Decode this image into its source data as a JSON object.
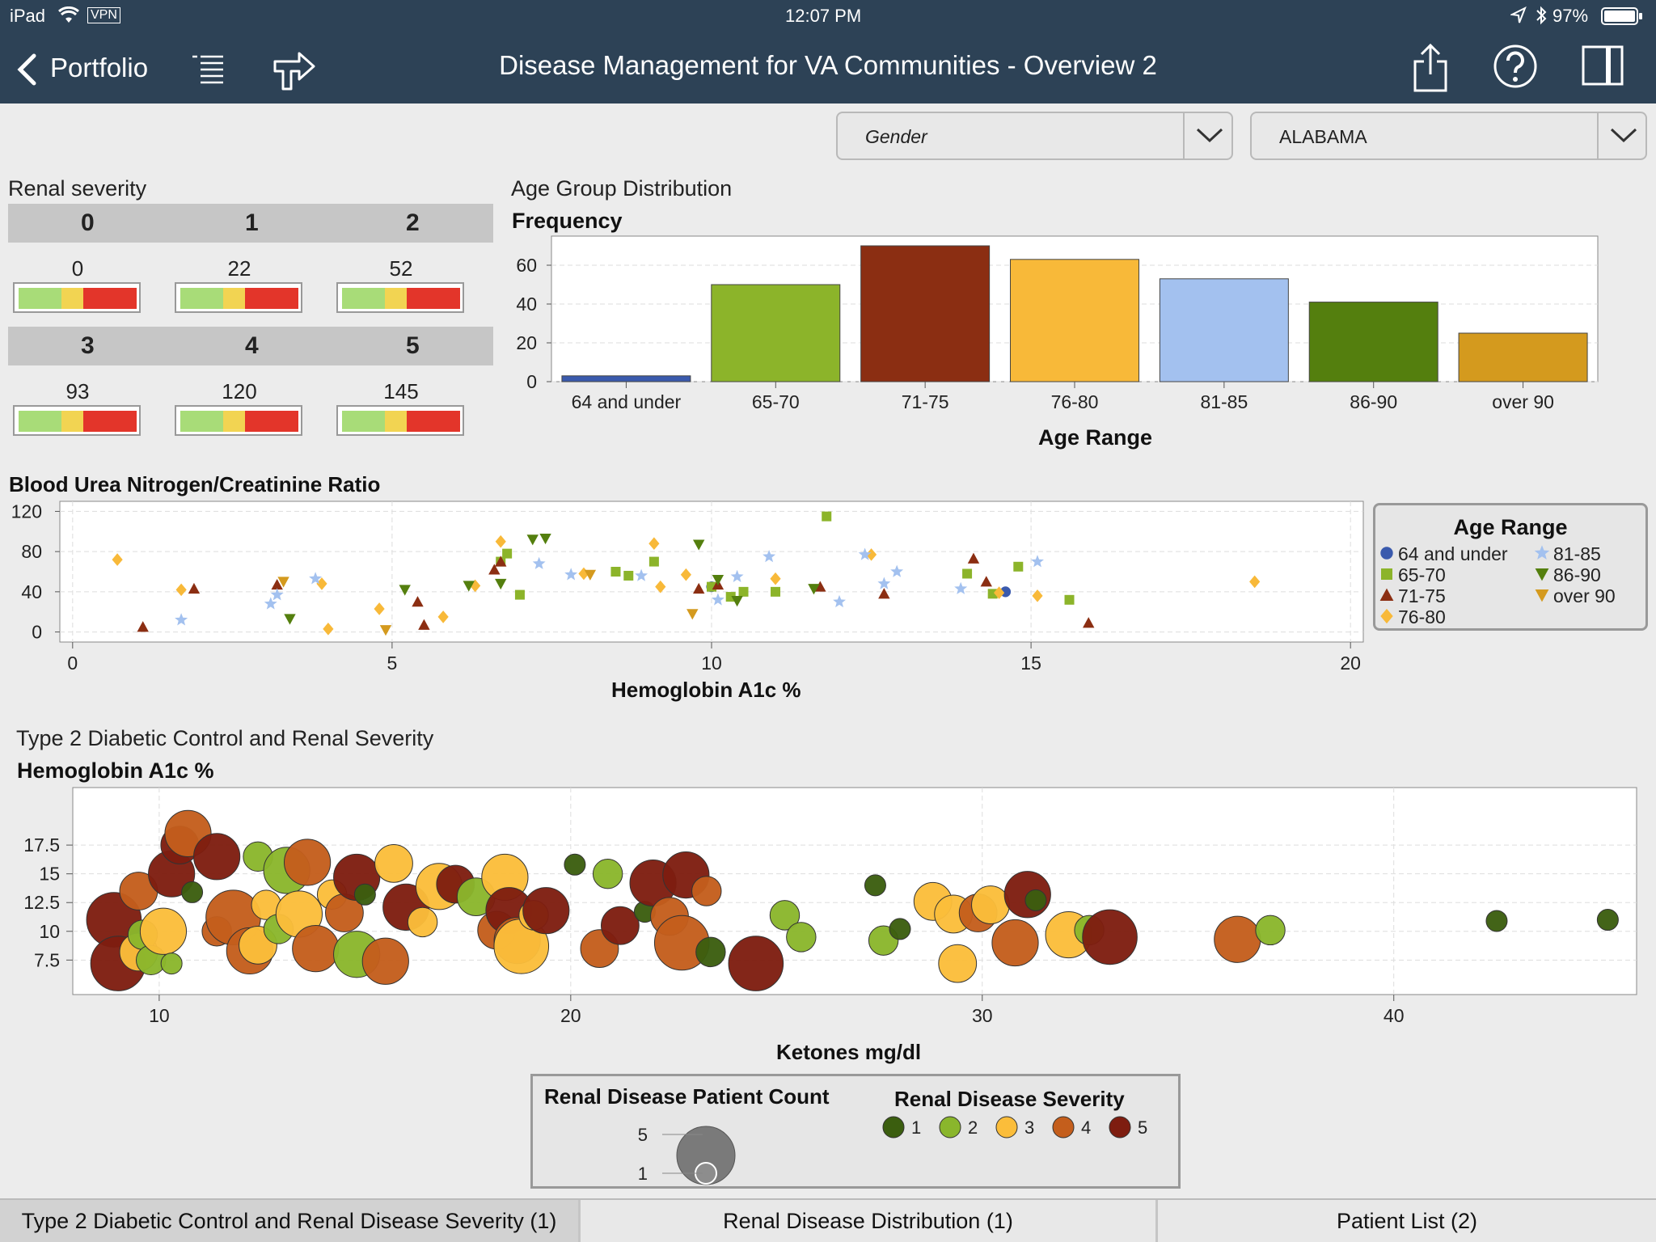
{
  "status": {
    "device": "iPad",
    "network": "VPN",
    "time": "12:07 PM",
    "battery": "97%"
  },
  "nav": {
    "back_label": "Portfolio",
    "title": "Disease Management for VA Communities - Overview 2"
  },
  "filters": {
    "gender_label": "Gender",
    "state_label": "ALABAMA"
  },
  "renal": {
    "title": "Renal severity",
    "cells": [
      {
        "level": "0",
        "count": "0"
      },
      {
        "level": "1",
        "count": "22"
      },
      {
        "level": "2",
        "count": "52"
      },
      {
        "level": "3",
        "count": "93"
      },
      {
        "level": "4",
        "count": "120"
      },
      {
        "level": "5",
        "count": "145"
      }
    ]
  },
  "colors": {
    "sev1": "#3b5e0f",
    "sev2": "#8ab62c",
    "sev3": "#fbbd3a",
    "sev4": "#c45e1c",
    "sev5": "#7e1d10",
    "age_64_under": "#3a5aad",
    "age_65_70": "#8cb42a",
    "age_71_75": "#8b2e12",
    "age_76_80": "#f8b939",
    "age_81_85": "#a3c1ef",
    "age_86_90": "#547f0e",
    "age_over_90": "#d49a1e",
    "nav_bg": "#2d4256"
  },
  "chart_data": [
    {
      "type": "bar",
      "title": "Age Group Distribution",
      "ylabel": "Frequency",
      "xlabel": "Age Range",
      "categories": [
        "64 and under",
        "65-70",
        "71-75",
        "76-80",
        "81-85",
        "86-90",
        "over 90"
      ],
      "values": [
        3,
        50,
        70,
        63,
        53,
        41,
        25
      ],
      "ylim": [
        0,
        75
      ],
      "yticks": [
        0,
        20,
        40,
        60
      ],
      "grid": true
    },
    {
      "type": "scatter",
      "title": "Blood Urea Nitrogen/Creatinine Ratio",
      "xlabel": "Hemoglobin A1c %",
      "xlim": [
        -0.2,
        20.2
      ],
      "ylim": [
        -10,
        130
      ],
      "xticks": [
        0,
        5,
        10,
        15,
        20
      ],
      "yticks": [
        0,
        40,
        80,
        120
      ],
      "legend_title": "Age Range",
      "legend_placement": "right",
      "series": [
        {
          "name": "64 and under",
          "marker": "circle",
          "points": [
            [
              14.6,
              40
            ],
            [
              10.0,
              45
            ]
          ]
        },
        {
          "name": "65-70",
          "marker": "square",
          "points": [
            [
              6.7,
              70
            ],
            [
              6.8,
              78
            ],
            [
              7.0,
              37
            ],
            [
              8.5,
              60
            ],
            [
              8.7,
              56
            ],
            [
              9.1,
              70
            ],
            [
              10.0,
              45
            ],
            [
              10.3,
              35
            ],
            [
              11.0,
              40
            ],
            [
              11.8,
              115
            ],
            [
              14.0,
              58
            ],
            [
              14.4,
              38
            ],
            [
              14.8,
              65
            ],
            [
              15.6,
              32
            ],
            [
              10.5,
              40
            ]
          ]
        },
        {
          "name": "71-75",
          "marker": "triangle",
          "points": [
            [
              1.1,
              5
            ],
            [
              1.9,
              43
            ],
            [
              3.2,
              47
            ],
            [
              5.4,
              30
            ],
            [
              5.5,
              7
            ],
            [
              6.6,
              62
            ],
            [
              6.7,
              70
            ],
            [
              9.8,
              43
            ],
            [
              10.1,
              47
            ],
            [
              11.7,
              45
            ],
            [
              12.7,
              38
            ],
            [
              14.1,
              73
            ],
            [
              14.3,
              50
            ],
            [
              15.9,
              9
            ]
          ]
        },
        {
          "name": "76-80",
          "marker": "diamond",
          "points": [
            [
              0.7,
              72
            ],
            [
              1.7,
              42
            ],
            [
              3.9,
              48
            ],
            [
              4.0,
              3
            ],
            [
              4.8,
              23
            ],
            [
              5.8,
              15
            ],
            [
              6.3,
              46
            ],
            [
              6.7,
              90
            ],
            [
              8.0,
              58
            ],
            [
              9.1,
              88
            ],
            [
              9.2,
              45
            ],
            [
              9.6,
              57
            ],
            [
              11.0,
              53
            ],
            [
              12.5,
              77
            ],
            [
              14.5,
              39
            ],
            [
              15.1,
              36
            ],
            [
              18.5,
              50
            ]
          ]
        },
        {
          "name": "81-85",
          "marker": "star",
          "points": [
            [
              1.7,
              12
            ],
            [
              3.1,
              28
            ],
            [
              3.2,
              37
            ],
            [
              3.8,
              53
            ],
            [
              7.3,
              68
            ],
            [
              7.8,
              57
            ],
            [
              8.9,
              56
            ],
            [
              10.1,
              32
            ],
            [
              10.4,
              55
            ],
            [
              10.9,
              75
            ],
            [
              12.0,
              30
            ],
            [
              12.4,
              77
            ],
            [
              12.7,
              48
            ],
            [
              12.9,
              60
            ],
            [
              13.9,
              43
            ],
            [
              15.1,
              70
            ]
          ]
        },
        {
          "name": "86-90",
          "marker": "triangle-down",
          "points": [
            [
              3.4,
              13
            ],
            [
              5.2,
              42
            ],
            [
              6.2,
              46
            ],
            [
              6.7,
              48
            ],
            [
              7.2,
              92
            ],
            [
              7.4,
              93
            ],
            [
              9.8,
              87
            ],
            [
              10.1,
              52
            ],
            [
              10.4,
              31
            ],
            [
              11.6,
              43
            ]
          ]
        },
        {
          "name": "over 90",
          "marker": "triangle-down",
          "points": [
            [
              3.3,
              50
            ],
            [
              4.9,
              2
            ],
            [
              8.1,
              57
            ],
            [
              9.7,
              18
            ]
          ]
        }
      ]
    },
    {
      "type": "scatter",
      "title": "Type 2 Diabetic Control and Renal Severity",
      "ylabel": "Hemoglobin A1c %",
      "xlabel": "Ketones mg/dl",
      "xlim": [
        7.9,
        45.9
      ],
      "ylim": [
        4.5,
        22.5
      ],
      "xticks": [
        10,
        20,
        30,
        40
      ],
      "yticks": [
        7.5,
        10.0,
        12.5,
        15.0,
        17.5
      ],
      "size_legend_title": "Renal Disease Patient Count",
      "size_legend_values": [
        "5",
        "1"
      ],
      "color_legend_title": "Renal Disease Severity",
      "color_legend_labels": [
        "1",
        "2",
        "3",
        "4",
        "5"
      ],
      "bubbles": [
        [
          8.9,
          11.0,
          5,
          5
        ],
        [
          9.0,
          7.2,
          5,
          5
        ],
        [
          9.5,
          13.5,
          3,
          4
        ],
        [
          9.5,
          8.2,
          3,
          3
        ],
        [
          9.6,
          9.7,
          2,
          2
        ],
        [
          9.8,
          7.5,
          2,
          2
        ],
        [
          10.1,
          10.0,
          4,
          3
        ],
        [
          10.3,
          7.2,
          1,
          2
        ],
        [
          10.3,
          15.0,
          4,
          5
        ],
        [
          10.5,
          17.5,
          3,
          5
        ],
        [
          10.7,
          18.5,
          4,
          4
        ],
        [
          10.8,
          13.4,
          1,
          1
        ],
        [
          11.4,
          16.5,
          4,
          5
        ],
        [
          11.4,
          10.0,
          2,
          4
        ],
        [
          11.8,
          11.2,
          5,
          4
        ],
        [
          12.2,
          8.3,
          4,
          4
        ],
        [
          12.4,
          8.8,
          3,
          3
        ],
        [
          12.4,
          16.5,
          2,
          2
        ],
        [
          12.6,
          12.3,
          2,
          3
        ],
        [
          12.9,
          10.2,
          2,
          2
        ],
        [
          13.1,
          15.3,
          4,
          2
        ],
        [
          13.4,
          11.5,
          4,
          3
        ],
        [
          13.6,
          16.0,
          4,
          4
        ],
        [
          13.8,
          8.5,
          4,
          4
        ],
        [
          14.2,
          13.2,
          2,
          3
        ],
        [
          14.5,
          11.6,
          3,
          4
        ],
        [
          14.8,
          14.7,
          4,
          5
        ],
        [
          14.8,
          8.0,
          4,
          2
        ],
        [
          15.0,
          13.2,
          1,
          1
        ],
        [
          15.5,
          7.4,
          4,
          4
        ],
        [
          15.7,
          15.9,
          3,
          3
        ],
        [
          16.0,
          12.1,
          4,
          5
        ],
        [
          16.4,
          10.8,
          2,
          3
        ],
        [
          16.8,
          13.9,
          4,
          3
        ],
        [
          17.2,
          14.1,
          3,
          5
        ],
        [
          17.7,
          13.0,
          3,
          2
        ],
        [
          18.2,
          10.1,
          3,
          4
        ],
        [
          18.4,
          14.7,
          4,
          3
        ],
        [
          18.5,
          11.8,
          4,
          5
        ],
        [
          18.7,
          9.2,
          4,
          4
        ],
        [
          18.8,
          8.7,
          5,
          3
        ],
        [
          19.1,
          11.4,
          2,
          3
        ],
        [
          19.4,
          11.8,
          4,
          5
        ],
        [
          20.1,
          15.8,
          1,
          1
        ],
        [
          20.7,
          8.5,
          3,
          4
        ],
        [
          20.9,
          15.0,
          2,
          2
        ],
        [
          21.2,
          10.5,
          3,
          5
        ],
        [
          21.8,
          11.7,
          1,
          1
        ],
        [
          22.0,
          14.2,
          4,
          5
        ],
        [
          22.4,
          11.3,
          3,
          4
        ],
        [
          22.7,
          9.0,
          5,
          4
        ],
        [
          22.8,
          14.9,
          4,
          5
        ],
        [
          23.3,
          13.5,
          2,
          4
        ],
        [
          23.4,
          8.2,
          2,
          1
        ],
        [
          24.5,
          7.2,
          5,
          5
        ],
        [
          25.2,
          11.4,
          2,
          2
        ],
        [
          25.6,
          9.5,
          2,
          2
        ],
        [
          27.4,
          14.0,
          1,
          1
        ],
        [
          27.6,
          9.2,
          2,
          2
        ],
        [
          28.0,
          10.2,
          1,
          1
        ],
        [
          28.8,
          12.6,
          3,
          3
        ],
        [
          29.3,
          11.5,
          3,
          3
        ],
        [
          29.4,
          7.2,
          3,
          3
        ],
        [
          29.9,
          11.6,
          3,
          4
        ],
        [
          30.2,
          12.3,
          3,
          3
        ],
        [
          30.8,
          9.0,
          4,
          4
        ],
        [
          31.1,
          13.2,
          4,
          5
        ],
        [
          31.3,
          12.7,
          1,
          1
        ],
        [
          32.1,
          9.7,
          4,
          3
        ],
        [
          32.6,
          10.1,
          2,
          2
        ],
        [
          33.1,
          9.5,
          5,
          5
        ],
        [
          36.2,
          9.3,
          4,
          4
        ],
        [
          37.0,
          10.1,
          2,
          2
        ],
        [
          42.5,
          10.9,
          1,
          1
        ],
        [
          45.2,
          11.0,
          1,
          1
        ]
      ]
    }
  ],
  "tabs": [
    {
      "label": "Type 2 Diabetic Control and Renal Disease Severity (1)"
    },
    {
      "label": "Renal Disease Distribution (1)"
    },
    {
      "label": "Patient List (2)"
    }
  ]
}
